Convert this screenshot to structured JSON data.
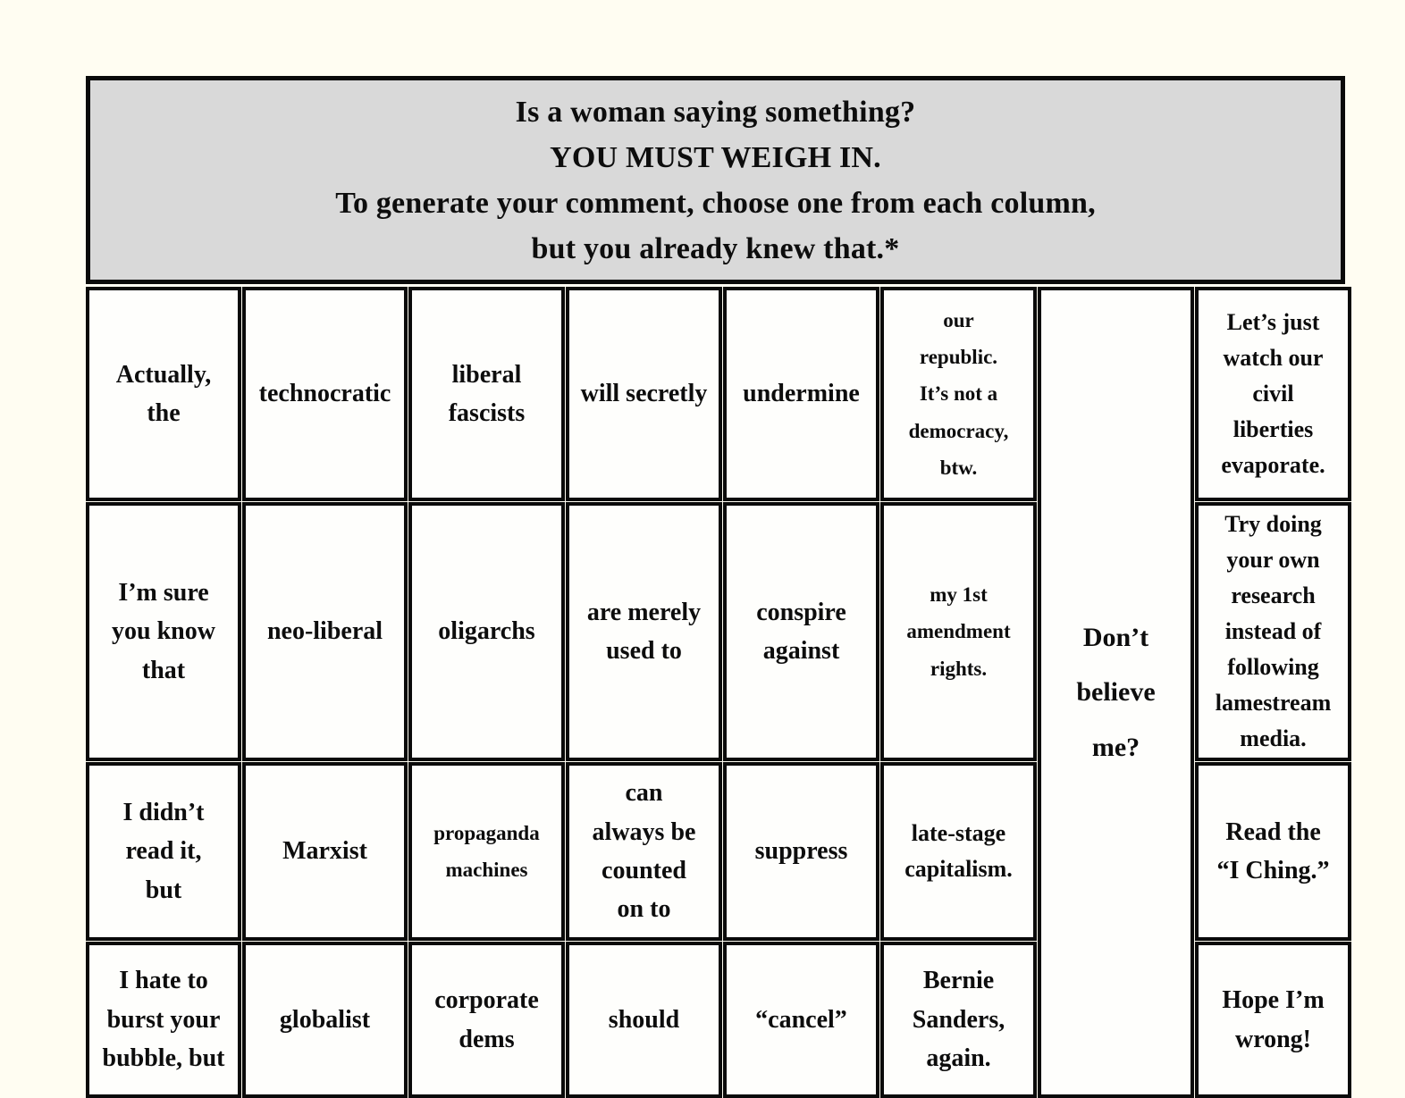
{
  "colors": {
    "page_background": "#FFFDF2",
    "header_background": "#D9D9D9",
    "cell_background": "#FEFEFC",
    "border": "#0A0A0A",
    "text": "#0D0D0D"
  },
  "header": {
    "text": "Is a woman saying something?\nYOU MUST WEIGH IN.\nTo generate your comment, choose one from each column,\nbut you already knew that.*"
  },
  "cells": {
    "r1c1": "Actually,\nthe",
    "r1c2": "technocratic",
    "r1c3": "liberal\nfascists",
    "r1c4": "will secretly",
    "r1c5": "undermine",
    "r1c6": "our\nrepublic.\nIt’s not a\ndemocracy,\nbtw.",
    "r1c8": "Let’s just\nwatch our\ncivil\nliberties\nevaporate.",
    "r2c1": "I’m sure\nyou know\nthat",
    "r2c2": "neo-liberal",
    "r2c3": "oligarchs",
    "r2c4": "are merely\nused to",
    "r2c5": "conspire\nagainst",
    "r2c6": "my 1st\namendment\nrights.",
    "r2c8": "Try doing\nyour own\nresearch\ninstead of\nfollowing\nlamestream\nmedia.",
    "r3c1": "I didn’t\nread it,\nbut",
    "r3c2": "Marxist",
    "r3c3": "propaganda\nmachines",
    "r3c4": "can\nalways be\ncounted\non to",
    "r3c5": "suppress",
    "r3c6": "late-stage\ncapitalism.",
    "r3c8": "Read the\n“I Ching.”",
    "r4c1": "I hate to\nburst your\nbubble, but",
    "r4c2": "globalist",
    "r4c3": "corporate\ndems",
    "r4c4": "should",
    "r4c5": "“cancel”",
    "r4c6": "Bernie\nSanders,\nagain.",
    "r4c8": "Hope I’m\nwrong!",
    "span": "Don’t\nbelieve\nme?"
  }
}
